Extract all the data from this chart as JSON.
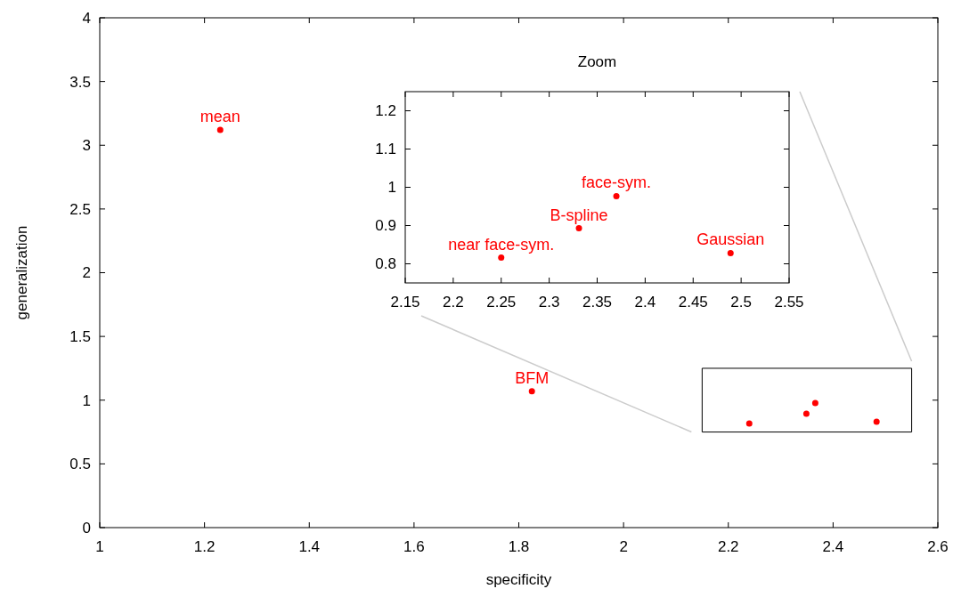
{
  "chart_data": [
    {
      "type": "scatter",
      "xlabel": "specificity",
      "ylabel": "generalization",
      "xlim": [
        1,
        2.6
      ],
      "xticks": [
        1,
        1.2,
        1.4,
        1.6,
        1.8,
        2,
        2.2,
        2.4,
        2.6
      ],
      "ylim": [
        0,
        4
      ],
      "yticks": [
        0,
        0.5,
        1,
        1.5,
        2,
        2.5,
        3,
        3.5,
        4
      ],
      "grid": false,
      "marker": "circle",
      "series": [
        {
          "color": "#ff0000",
          "x": [
            1.23,
            1.825,
            2.24,
            2.349,
            2.366,
            2.483
          ],
          "values": [
            3.12,
            1.07,
            0.817,
            0.894,
            0.977,
            0.831
          ]
        }
      ],
      "annotations": [
        {
          "text": "mean",
          "x": 1.23,
          "y": 3.12
        },
        {
          "text": "BFM",
          "x": 1.825,
          "y": 1.07
        }
      ]
    },
    {
      "type": "scatter",
      "title": "Zoom",
      "xlim": [
        2.15,
        2.55
      ],
      "xticks": [
        2.15,
        2.2,
        2.25,
        2.3,
        2.35,
        2.4,
        2.45,
        2.5,
        2.55
      ],
      "ylim": [
        0.75,
        1.25
      ],
      "yticks": [
        0.8,
        0.9,
        1,
        1.1,
        1.2
      ],
      "grid": false,
      "marker": "circle",
      "series": [
        {
          "color": "#ff0000",
          "x": [
            2.25,
            2.331,
            2.37,
            2.489
          ],
          "values": [
            0.816,
            0.893,
            0.977,
            0.828
          ]
        }
      ],
      "annotations": [
        {
          "text": "near face-sym.",
          "x": 2.25,
          "y": 0.816
        },
        {
          "text": "B-spline",
          "x": 2.331,
          "y": 0.893
        },
        {
          "text": "face-sym.",
          "x": 2.37,
          "y": 0.977
        },
        {
          "text": "Gaussian",
          "x": 2.489,
          "y": 0.828
        }
      ]
    }
  ]
}
